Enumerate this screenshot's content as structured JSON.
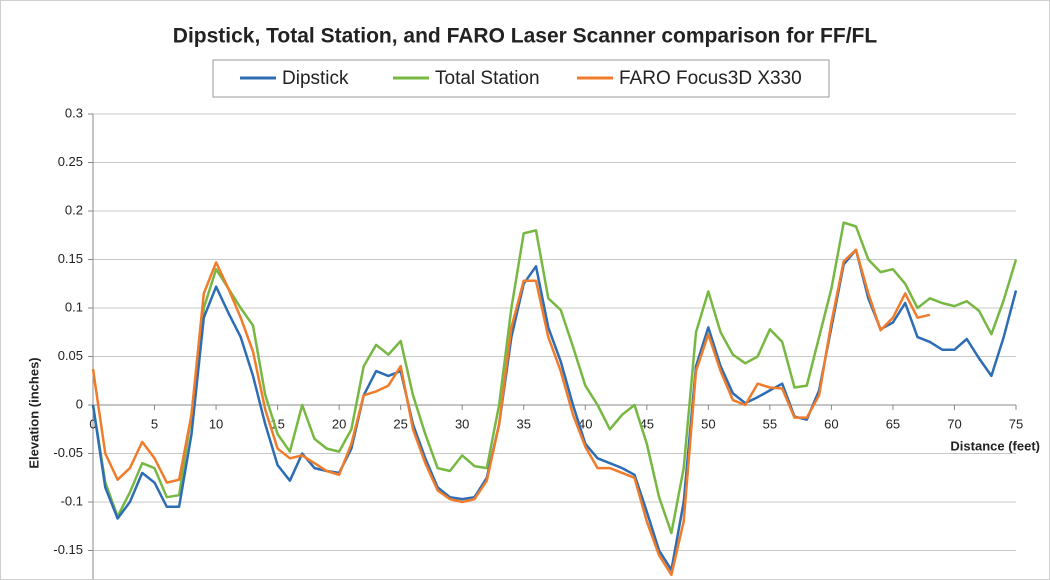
{
  "chart_data": {
    "type": "line",
    "title": "Dipstick, Total Station, and FARO Laser Scanner comparison for FF/FL",
    "x_label": "Distance (feet)",
    "y_label": "Elevation (inches)",
    "x": [
      0,
      1,
      2,
      3,
      4,
      5,
      6,
      7,
      8,
      9,
      10,
      11,
      12,
      13,
      14,
      15,
      16,
      17,
      18,
      19,
      20,
      21,
      22,
      23,
      24,
      25,
      26,
      27,
      28,
      29,
      30,
      31,
      32,
      33,
      34,
      35,
      36,
      37,
      38,
      39,
      40,
      41,
      42,
      43,
      44,
      45,
      46,
      47,
      48,
      49,
      50,
      51,
      52,
      53,
      54,
      55,
      56,
      57,
      58,
      59,
      60,
      61,
      62,
      63,
      64,
      65,
      66,
      67,
      68,
      69,
      70,
      71,
      72,
      73,
      74,
      75
    ],
    "series": [
      {
        "name": "Dipstick",
        "color": "#2e6db4",
        "values": [
          0.0,
          -0.085,
          -0.117,
          -0.1,
          -0.07,
          -0.08,
          -0.105,
          -0.105,
          -0.03,
          0.09,
          0.122,
          0.095,
          0.07,
          0.03,
          -0.02,
          -0.062,
          -0.078,
          -0.05,
          -0.065,
          -0.068,
          -0.07,
          -0.045,
          0.01,
          0.035,
          0.03,
          0.035,
          -0.02,
          -0.055,
          -0.085,
          -0.095,
          -0.097,
          -0.095,
          -0.075,
          -0.02,
          0.07,
          0.125,
          0.143,
          0.08,
          0.045,
          0.0,
          -0.04,
          -0.055,
          -0.06,
          -0.065,
          -0.072,
          -0.11,
          -0.15,
          -0.17,
          -0.1,
          0.04,
          0.08,
          0.04,
          0.012,
          0.002,
          0.008,
          0.015,
          0.022,
          -0.012,
          -0.015,
          0.015,
          0.08,
          0.145,
          0.16,
          0.11,
          0.078,
          0.085,
          0.105,
          0.07,
          0.065,
          0.057,
          0.057,
          0.068,
          0.048,
          0.03,
          0.07,
          0.118
        ]
      },
      {
        "name": "Total Station",
        "color": "#77b843",
        "values": [
          0.0,
          -0.08,
          -0.115,
          -0.09,
          -0.06,
          -0.065,
          -0.095,
          -0.093,
          -0.01,
          0.1,
          0.14,
          0.12,
          0.1,
          0.082,
          0.01,
          -0.03,
          -0.048,
          0.0,
          -0.035,
          -0.045,
          -0.048,
          -0.025,
          0.04,
          0.062,
          0.052,
          0.066,
          0.01,
          -0.03,
          -0.065,
          -0.068,
          -0.052,
          -0.063,
          -0.065,
          0.0,
          0.1,
          0.177,
          0.18,
          0.11,
          0.098,
          0.06,
          0.02,
          0.0,
          -0.025,
          -0.01,
          0.0,
          -0.04,
          -0.095,
          -0.132,
          -0.065,
          0.075,
          0.117,
          0.075,
          0.052,
          0.043,
          0.05,
          0.078,
          0.065,
          0.018,
          0.02,
          0.07,
          0.12,
          0.188,
          0.184,
          0.15,
          0.137,
          0.14,
          0.125,
          0.1,
          0.11,
          0.105,
          0.102,
          0.107,
          0.097,
          0.073,
          0.108,
          0.15
        ]
      },
      {
        "name": "FARO Focus3D X330",
        "color": "#f07c2b",
        "values": [
          0.037,
          -0.05,
          -0.077,
          -0.065,
          -0.038,
          -0.055,
          -0.08,
          -0.077,
          -0.01,
          0.115,
          0.147,
          0.12,
          0.09,
          0.055,
          -0.005,
          -0.045,
          -0.055,
          -0.052,
          -0.06,
          -0.068,
          -0.072,
          -0.04,
          0.01,
          0.014,
          0.02,
          0.04,
          -0.025,
          -0.06,
          -0.088,
          -0.097,
          -0.1,
          -0.097,
          -0.078,
          -0.02,
          0.08,
          0.128,
          0.128,
          0.07,
          0.035,
          -0.01,
          -0.043,
          -0.065,
          -0.065,
          -0.07,
          -0.075,
          -0.12,
          -0.155,
          -0.175,
          -0.12,
          0.035,
          0.073,
          0.035,
          0.005,
          0.0,
          0.022,
          0.018,
          0.017,
          -0.013,
          -0.013,
          0.01,
          0.085,
          0.148,
          0.16,
          0.115,
          0.077,
          0.09,
          0.115,
          0.09,
          0.093,
          null,
          null,
          null,
          null,
          null,
          null,
          null
        ]
      }
    ],
    "xlim": [
      0,
      75
    ],
    "xticks": [
      0,
      5,
      10,
      15,
      20,
      25,
      30,
      35,
      40,
      45,
      50,
      55,
      60,
      65,
      70,
      75
    ],
    "ylim": [
      -0.2,
      0.3
    ],
    "yticks": [
      -0.15,
      -0.1,
      -0.05,
      0,
      0.05,
      0.1,
      0.15,
      0.2,
      0.25,
      0.3
    ],
    "grid": true,
    "legend": "top"
  }
}
